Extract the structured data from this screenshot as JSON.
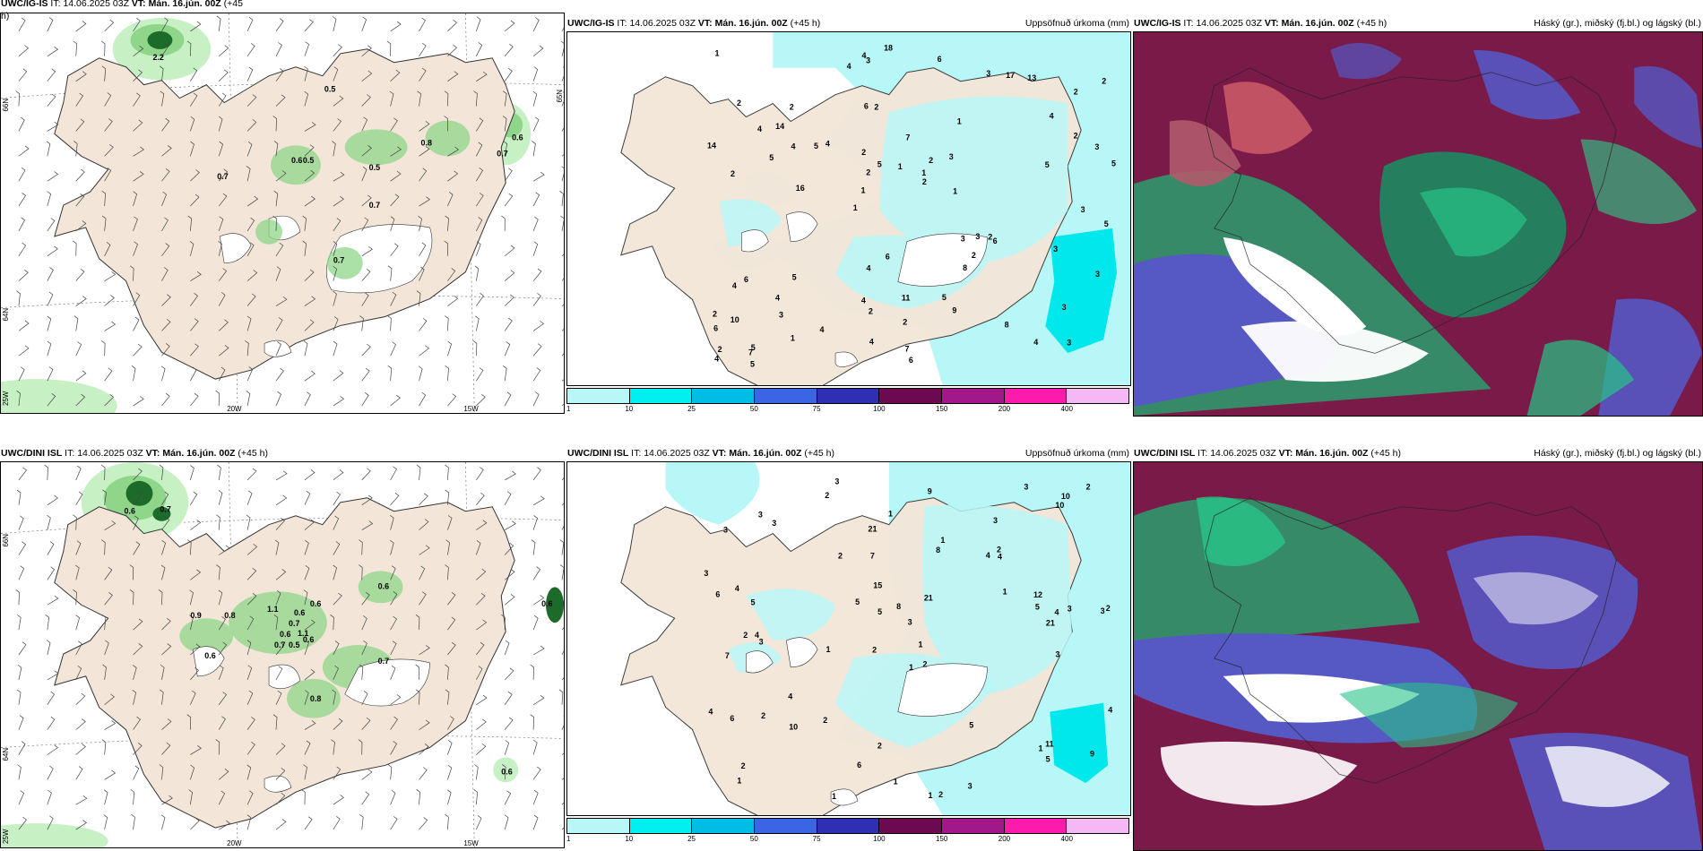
{
  "panels": {
    "top_left": {
      "header_model": "UWC/IG-IS",
      "header_it_label": "IT:",
      "header_it": "14.06.2025 03Z",
      "header_vt_label": "VT:",
      "header_vt": "Mán. 16.jún. 00Z",
      "header_lead": "(+45",
      "header_lead2": "h)",
      "values": [
        "2.2",
        "0.5",
        "0.6",
        "0.8",
        "0.7",
        "0.6",
        "0.5",
        "0.7",
        "0.5",
        "0.7",
        "0.7"
      ],
      "axis": {
        "lat1": "66N",
        "lat2": "64N",
        "lon1": "20W",
        "lon2": "15W",
        "lon_left": "25W",
        "lat_right": "65N"
      }
    },
    "top_middle": {
      "header_model": "UWC/IG-IS",
      "header_it_label": "IT:",
      "header_it": "14.06.2025 03Z",
      "header_vt_label": "VT:",
      "header_vt": "Mán. 16.jún. 00Z",
      "header_lead": "(+45 h)",
      "header_right": "Uppsöfnuð úrkoma (mm)",
      "values": [
        "3",
        "2",
        "2",
        "1",
        "1",
        "5",
        "6",
        "7",
        "6",
        "4",
        "6",
        "3",
        "2",
        "2",
        "6",
        "2",
        "3",
        "5",
        "3",
        "2",
        "1",
        "4",
        "2",
        "2",
        "3",
        "5",
        "4",
        "3",
        "2",
        "6",
        "5",
        "5",
        "8",
        "1",
        "3",
        "1",
        "2",
        "2",
        "2",
        "4",
        "4",
        "2",
        "2",
        "9",
        "4",
        "5",
        "4",
        "11",
        "13",
        "18",
        "16",
        "14",
        "14",
        "17",
        "7",
        "6",
        "4",
        "5",
        "3",
        "4",
        "4",
        "3",
        "4",
        "2",
        "1",
        "4",
        "5",
        "2",
        "2",
        "1",
        "10",
        "1",
        "3",
        "4",
        "5",
        "6",
        "8",
        "7",
        "5",
        "4",
        "3",
        "3"
      ],
      "colorbar_labels": [
        "1",
        "10",
        "25",
        "50",
        "75",
        "100",
        "150",
        "200",
        "400"
      ]
    },
    "top_right": {
      "header_model": "UWC/IG-IS",
      "header_it_label": "IT:",
      "header_it": "14.06.2025 03Z",
      "header_vt_label": "VT:",
      "header_vt": "Mán. 16.jún. 00Z",
      "header_lead": "(+45 h)",
      "header_right": "Háský (gr.), miðský (fj.bl.) og lágský (bl.)"
    },
    "bottom_left": {
      "header_model": "UWC/DINI ISL",
      "header_it_label": "IT:",
      "header_it": "14.06.2025 03Z",
      "header_vt_label": "VT:",
      "header_vt": "Mán. 16.jún. 00Z",
      "header_lead": "(+45 h)",
      "values": [
        "0.6",
        "0.7",
        "0.9",
        "0.8",
        "1.1",
        "0.6",
        "0.7",
        "0.6",
        "0.7",
        "0.6",
        "0.5",
        "1.1",
        "0.6",
        "0.6",
        "0.7",
        "0.8",
        "0.6",
        "0.6",
        "0.6"
      ],
      "axis": {
        "lat1": "66N",
        "lat2": "64N",
        "lon1": "20W",
        "lon2": "15W",
        "lon_left": "25W",
        "lat_right": "65N"
      }
    },
    "bottom_middle": {
      "header_model": "UWC/DINI ISL",
      "header_it_label": "IT:",
      "header_it": "14.06.2025 03Z",
      "header_vt_label": "VT:",
      "header_vt": "Mán. 16.jún. 00Z",
      "header_lead": "(+45 h)",
      "header_right": "Uppsöfnuð úrkoma (mm)",
      "values": [
        "3",
        "3",
        "3",
        "2",
        "2",
        "4",
        "3",
        "4",
        "7",
        "8",
        "3",
        "1",
        "2",
        "1",
        "1",
        "2",
        "2",
        "3",
        "1",
        "4",
        "5",
        "2",
        "2",
        "3",
        "4",
        "4",
        "5",
        "5",
        "11",
        "6",
        "1",
        "1",
        "2",
        "5",
        "5",
        "4",
        "12",
        "6",
        "2",
        "1",
        "2",
        "1",
        "3",
        "3",
        "1",
        "4",
        "5",
        "2",
        "3",
        "1",
        "21",
        "21",
        "21",
        "10",
        "9",
        "10",
        "15",
        "8",
        "10",
        "7",
        "9",
        "3",
        "3",
        "2",
        "1",
        "6",
        "4",
        "3",
        "2"
      ],
      "colorbar_labels": [
        "1",
        "10",
        "25",
        "50",
        "75",
        "100",
        "150",
        "200",
        "400"
      ]
    },
    "bottom_right": {
      "header_model": "UWC/DINI ISL",
      "header_it_label": "IT:",
      "header_it": "14.06.2025 03Z",
      "header_vt_label": "VT:",
      "header_vt": "Mán. 16.jún. 00Z",
      "header_lead": "(+45 h)",
      "header_right": "Háský (gr.), miðský (fj.bl.) og lágský (bl.)"
    }
  },
  "colors": {
    "land": "#f3e6d8",
    "sea": "#ffffff",
    "precip_light": "#b8f7f7",
    "precip_mid": "#00e8ec",
    "wind_green_light": "#c7f0c4",
    "wind_green": "#8fd68a",
    "wind_green_dark": "#1d6b2a",
    "cloud_high": "#1fa26b",
    "cloud_mid": "#7a1a48",
    "cloud_low": "#5658c4"
  },
  "colorbar_colors": [
    "#b8f7f7",
    "#00f0f0",
    "#00bde6",
    "#3a66e6",
    "#2e2fb2",
    "#6b0a50",
    "#a0188a",
    "#ff1aae",
    "#f5b8f5"
  ]
}
